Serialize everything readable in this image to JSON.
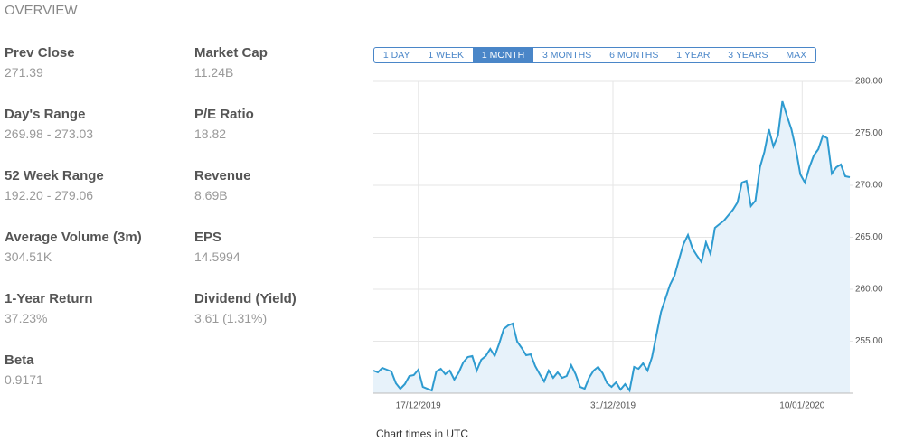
{
  "header": {
    "title": "OVERVIEW"
  },
  "stats": {
    "left": [
      {
        "label": "Prev Close",
        "value": "271.39"
      },
      {
        "label": "Day's Range",
        "value": "269.98 - 273.03"
      },
      {
        "label": "52 Week Range",
        "value": "192.20 - 279.06"
      },
      {
        "label": "Average Volume (3m)",
        "value": "304.51K"
      },
      {
        "label": "1-Year Return",
        "value": "37.23%"
      },
      {
        "label": "Beta",
        "value": "0.9171"
      }
    ],
    "right": [
      {
        "label": "Market Cap",
        "value": "11.24B"
      },
      {
        "label": "P/E Ratio",
        "value": "18.82"
      },
      {
        "label": "Revenue",
        "value": "8.69B"
      },
      {
        "label": "EPS",
        "value": "14.5994"
      },
      {
        "label": "Dividend (Yield)",
        "value": "3.61 (1.31%)"
      }
    ]
  },
  "range_buttons": {
    "labels": [
      "1 DAY",
      "1 WEEK",
      "1 MONTH",
      "3 MONTHS",
      "6 MONTHS",
      "1 YEAR",
      "3 YEARS",
      "MAX"
    ],
    "active": 2
  },
  "chart_data": {
    "type": "line",
    "series": [
      {
        "color": "#2e9bd0",
        "fill": "#e7f2fa",
        "values": [
          252.17,
          252.0,
          252.43,
          252.26,
          252.09,
          250.96,
          250.43,
          250.87,
          251.65,
          251.74,
          252.26,
          250.61,
          250.43,
          250.26,
          252.09,
          252.35,
          251.83,
          252.17,
          251.3,
          252.0,
          252.96,
          253.48,
          253.57,
          252.17,
          253.22,
          253.57,
          254.26,
          253.57,
          254.78,
          256.17,
          256.52,
          256.7,
          254.96,
          254.35,
          253.65,
          253.74,
          252.61,
          251.83,
          251.13,
          252.17,
          251.48,
          252.0,
          251.48,
          251.65,
          252.7,
          251.83,
          250.61,
          250.43,
          251.48,
          252.17,
          252.52,
          251.91,
          250.96,
          250.61,
          251.04,
          250.35,
          250.87,
          250.26,
          252.52,
          252.35,
          252.87,
          252.17,
          253.48,
          255.65,
          257.83,
          259.13,
          260.43,
          261.3,
          262.87,
          264.35,
          265.22,
          263.91,
          263.22,
          262.61,
          264.52,
          263.39,
          265.91,
          266.26,
          266.61,
          267.13,
          267.65,
          268.35,
          270.26,
          270.43,
          268.0,
          268.52,
          271.74,
          273.22,
          275.39,
          273.74,
          274.78,
          278.09,
          276.7,
          275.39,
          273.48,
          271.04,
          270.26,
          271.74,
          272.87,
          273.48,
          274.78,
          274.52,
          271.13,
          271.74,
          272.0,
          270.87,
          270.78
        ]
      }
    ],
    "ylim": [
      250,
      280
    ],
    "yticks": [
      {
        "value": 255,
        "label": "255.00"
      },
      {
        "value": 260,
        "label": "260.00"
      },
      {
        "value": 265,
        "label": "265.00"
      },
      {
        "value": 270,
        "label": "270.00"
      },
      {
        "value": 275,
        "label": "275.00"
      },
      {
        "value": 280,
        "label": "280.00"
      }
    ],
    "xticks": [
      {
        "value": 10,
        "label": "17/12/2019"
      },
      {
        "value": 53.3,
        "label": "31/12/2019"
      },
      {
        "value": 95.4,
        "label": "10/01/2020"
      }
    ],
    "grid": true,
    "note": "Chart times in UTC"
  }
}
